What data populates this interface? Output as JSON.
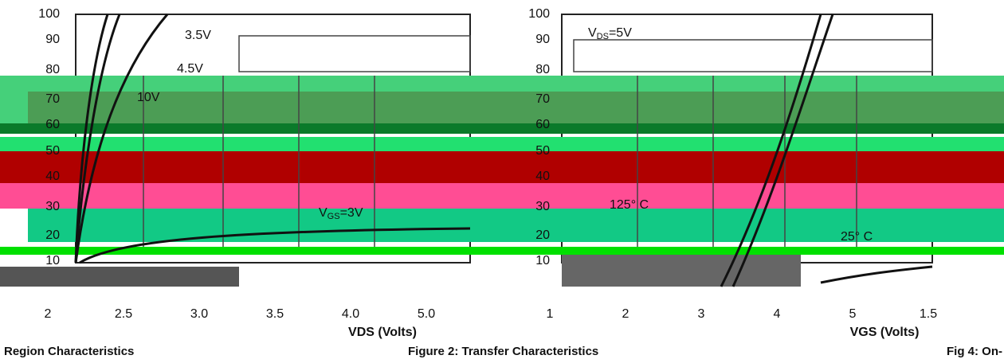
{
  "left_panel": {
    "yticks": [
      "100",
      "90",
      "80",
      "70",
      "60",
      "50",
      "40",
      "30",
      "20",
      "10"
    ],
    "xticks": [
      "2",
      "2.5",
      "3.0",
      "3.5",
      "4.0",
      "5.0"
    ],
    "xlabel": "VDS (Volts)",
    "annotations": {
      "a": "3.5V",
      "b": "4.5V",
      "c": "10V",
      "vgs": {
        "v": "V",
        "sub": "GS",
        "rest": "=3V"
      }
    },
    "caption": "Region Characteristics"
  },
  "mid_panel": {
    "yticks": [
      "100",
      "90",
      "80",
      "70",
      "60",
      "50",
      "40",
      "30",
      "20",
      "10"
    ],
    "xticks": [
      "1",
      "2",
      "3",
      "4",
      "5",
      "1.5"
    ],
    "xlabel": "VGS (Volts)",
    "annotations": {
      "vds": {
        "v": "V",
        "sub": "DS",
        "rest": "=5V"
      },
      "hot": "125° C",
      "cold": "25° C"
    },
    "caption": "Figure 2: Transfer Characteristics"
  },
  "right_caption": "Fig 4: On-"
}
